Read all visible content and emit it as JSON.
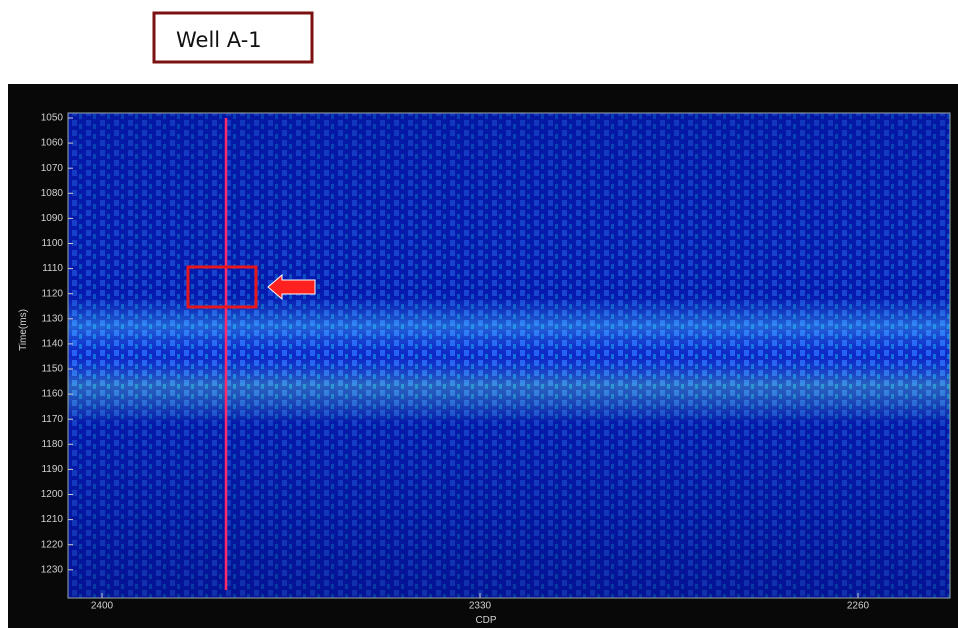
{
  "label": "Well A-1",
  "plot": {
    "y_axis": {
      "title": "Time(ms)",
      "ticks": [
        1050,
        1060,
        1070,
        1080,
        1090,
        1100,
        1110,
        1120,
        1130,
        1140,
        1150,
        1160,
        1170,
        1180,
        1190,
        1200,
        1210,
        1220,
        1230
      ]
    },
    "x_axis": {
      "title": "CDP",
      "ticks": [
        2400,
        2330,
        2260
      ]
    }
  }
}
